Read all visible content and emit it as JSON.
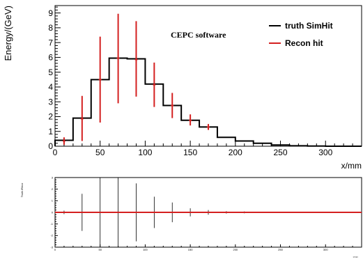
{
  "chart_data": [
    {
      "type": "step",
      "annotation": "CEPC software",
      "xlabel": "x/mm",
      "ylabel": "Energy/(GeV)",
      "xlim": [
        0,
        340
      ],
      "ylim": [
        0,
        9.5
      ],
      "x_ticks": [
        0,
        50,
        100,
        150,
        200,
        250,
        300
      ],
      "y_ticks": [
        0,
        1,
        2,
        3,
        4,
        5,
        6,
        7,
        8,
        9
      ],
      "legend_position": "top-right",
      "series": [
        {
          "name": "truth SimHit",
          "color": "#000000",
          "bin_edges": [
            0,
            20,
            40,
            60,
            80,
            100,
            120,
            140,
            160,
            180,
            200,
            220,
            240,
            260,
            280,
            300,
            320,
            340
          ],
          "values": [
            0.4,
            1.9,
            4.5,
            5.95,
            5.9,
            4.2,
            2.75,
            1.75,
            1.3,
            0.6,
            0.35,
            0.2,
            0.08,
            0.03,
            0.01,
            0.0,
            0.0
          ]
        },
        {
          "name": "Recon hit",
          "color": "#d42020",
          "x": [
            10,
            30,
            50,
            70,
            90,
            110,
            130,
            150,
            170
          ],
          "values": [
            0.35,
            1.85,
            4.5,
            5.95,
            5.85,
            4.15,
            2.75,
            1.75,
            1.3
          ],
          "err_low": [
            0.25,
            1.5,
            2.9,
            3.05,
            2.5,
            1.5,
            0.85,
            0.35,
            0.2
          ],
          "err_high": [
            0.25,
            1.55,
            2.9,
            3.0,
            2.6,
            1.5,
            0.85,
            0.4,
            0.2
          ]
        }
      ]
    },
    {
      "type": "ratio",
      "ylabel": "Truth /Reco",
      "xlabel": "x/mm",
      "xlim": [
        0,
        340
      ],
      "ylim": [
        -3,
        3
      ],
      "x_ticks": [
        0,
        50,
        100,
        150,
        200,
        250,
        300
      ],
      "y_ticks": [
        -3,
        -2,
        -1,
        0,
        1,
        2,
        3
      ],
      "reference_line": 0,
      "reference_color": "#d42020",
      "series": [
        {
          "name": "",
          "color": "#000000",
          "x": [
            10,
            30,
            50,
            70,
            90,
            110,
            130,
            150,
            170,
            190,
            210,
            230,
            250,
            270,
            290,
            310,
            330
          ],
          "values": [
            0,
            0,
            0,
            0,
            0,
            0,
            0,
            0,
            0,
            0,
            0,
            0,
            0,
            0,
            0,
            0,
            0
          ],
          "err": [
            0.15,
            1.6,
            3.2,
            3.5,
            2.5,
            1.35,
            0.85,
            0.35,
            0.2,
            0.1,
            0.08,
            0.05,
            0.05,
            0.05,
            0.05,
            0.05,
            0.05
          ]
        }
      ]
    }
  ]
}
